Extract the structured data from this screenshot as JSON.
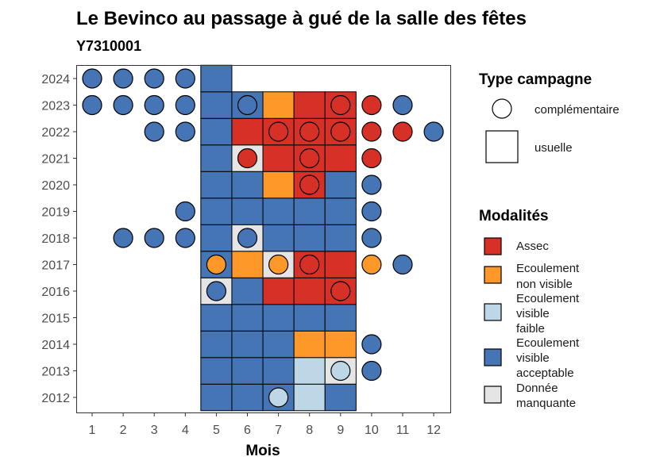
{
  "chart_data": {
    "type": "heatmap",
    "title": "Le Bevinco au passage à gué de la salle des fêtes",
    "subtitle": "Y7310001",
    "xlabel": "Mois",
    "ylabel": "",
    "x_ticks": [
      1,
      2,
      3,
      4,
      5,
      6,
      7,
      8,
      9,
      10,
      11,
      12
    ],
    "y_ticks": [
      2012,
      2013,
      2014,
      2015,
      2016,
      2017,
      2018,
      2019,
      2020,
      2021,
      2022,
      2023,
      2024
    ],
    "xlim": [
      0.5,
      12.5
    ],
    "ylim": [
      2011.5,
      2024.5
    ],
    "grid": false,
    "legend_position": "right",
    "campaign_legend": {
      "title": "Type campagne",
      "items": [
        {
          "key": "complementaire",
          "label": "complémentaire",
          "shape": "circle"
        },
        {
          "key": "usuelle",
          "label": "usuelle",
          "shape": "square"
        }
      ]
    },
    "modality_legend": {
      "title": "Modalités",
      "items": [
        {
          "key": "assec",
          "label": [
            "Assec"
          ],
          "color": "#d73027"
        },
        {
          "key": "nonvis",
          "label": [
            "Ecoulement",
            "non visible"
          ],
          "color": "#fe9929"
        },
        {
          "key": "faible",
          "label": [
            "Ecoulement",
            "visible",
            "faible"
          ],
          "color": "#bdd7e7"
        },
        {
          "key": "accept",
          "label": [
            "Ecoulement",
            "visible",
            "acceptable"
          ],
          "color": "#4575b4"
        },
        {
          "key": "manq",
          "label": [
            "Donnée",
            "manquante"
          ],
          "color": "#e5e5e5"
        }
      ]
    },
    "usuelle": {
      "2012": {
        "5": "accept",
        "6": "accept",
        "7": "accept",
        "8": "faible",
        "9": "accept"
      },
      "2013": {
        "5": "accept",
        "6": "accept",
        "7": "accept",
        "8": "faible",
        "9": "manq"
      },
      "2014": {
        "5": "accept",
        "6": "accept",
        "7": "accept",
        "8": "nonvis",
        "9": "nonvis"
      },
      "2015": {
        "5": "accept",
        "6": "accept",
        "7": "accept",
        "8": "accept",
        "9": "accept"
      },
      "2016": {
        "5": "manq",
        "6": "accept",
        "7": "assec",
        "8": "assec",
        "9": "assec"
      },
      "2017": {
        "5": "accept",
        "6": "nonvis",
        "7": "manq",
        "8": "assec",
        "9": "assec"
      },
      "2018": {
        "5": "accept",
        "6": "manq",
        "7": "accept",
        "8": "accept",
        "9": "accept"
      },
      "2019": {
        "5": "accept",
        "6": "accept",
        "7": "accept",
        "8": "accept",
        "9": "accept"
      },
      "2020": {
        "5": "accept",
        "6": "accept",
        "7": "nonvis",
        "8": "assec",
        "9": "accept"
      },
      "2021": {
        "5": "accept",
        "6": "manq",
        "7": "assec",
        "8": "assec",
        "9": "assec"
      },
      "2022": {
        "5": "accept",
        "6": "assec",
        "7": "assec",
        "8": "assec",
        "9": "assec"
      },
      "2023": {
        "5": "accept",
        "6": "accept",
        "7": "nonvis",
        "8": "assec",
        "9": "assec"
      },
      "2024": {
        "5": "accept"
      }
    },
    "complementaire": {
      "2012": {
        "7": "faible"
      },
      "2013": {
        "9": "faible",
        "10": "accept"
      },
      "2014": {
        "10": "accept"
      },
      "2016": {
        "5": "accept",
        "9": "assec"
      },
      "2017": {
        "5": "nonvis",
        "7": "nonvis",
        "8": "assec",
        "10": "nonvis",
        "11": "accept"
      },
      "2018": {
        "2": "accept",
        "3": "accept",
        "4": "accept",
        "6": "accept",
        "10": "accept"
      },
      "2019": {
        "4": "accept",
        "10": "accept"
      },
      "2020": {
        "8": "assec",
        "10": "accept"
      },
      "2021": {
        "6": "assec",
        "8": "assec",
        "10": "assec"
      },
      "2022": {
        "3": "accept",
        "4": "accept",
        "7": "assec",
        "8": "assec",
        "9": "assec",
        "10": "assec",
        "11": "assec",
        "12": "accept"
      },
      "2023": {
        "1": "accept",
        "2": "accept",
        "3": "accept",
        "4": "accept",
        "6": "accept",
        "9": "assec",
        "10": "assec",
        "11": "accept"
      },
      "2024": {
        "1": "accept",
        "2": "accept",
        "3": "accept",
        "4": "accept"
      }
    }
  }
}
